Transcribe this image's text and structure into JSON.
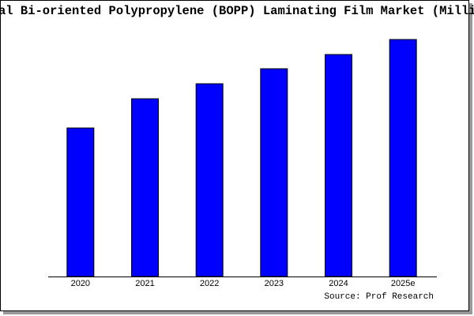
{
  "chart_data": {
    "type": "bar",
    "title": "al Bi-oriented Polypropylene (BOPP) Laminating Film Market (Million",
    "categories": [
      "2020",
      "2021",
      "2022",
      "2023",
      "2024",
      "2025e"
    ],
    "values": [
      188,
      225,
      244,
      263,
      281,
      300
    ],
    "color": "#0000ff",
    "source": "Source: Prof Research"
  }
}
